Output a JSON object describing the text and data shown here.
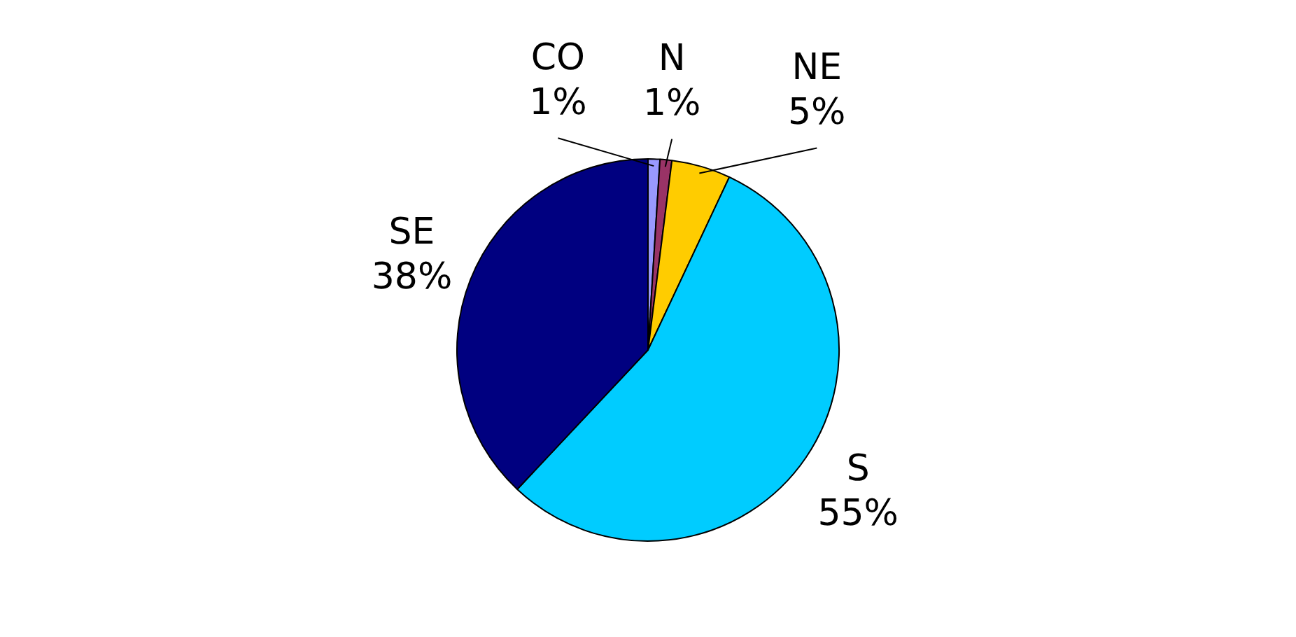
{
  "chart_data": {
    "type": "pie",
    "categories": [
      "CO",
      "N",
      "NE",
      "S",
      "SE"
    ],
    "values": [
      1,
      1,
      5,
      55,
      38
    ],
    "colors": [
      "#9999ff",
      "#993366",
      "#ffcc00",
      "#00ccff",
      "#000080"
    ],
    "value_labels": [
      "1%",
      "1%",
      "5%",
      "55%",
      "38%"
    ],
    "legend": false
  }
}
